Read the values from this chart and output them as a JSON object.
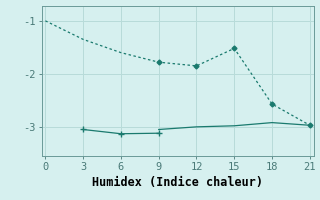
{
  "line1_x": [
    0,
    3,
    6,
    9,
    12,
    15,
    18,
    21
  ],
  "line1_y": [
    -1.0,
    -1.35,
    -1.6,
    -1.78,
    -1.85,
    -1.52,
    -2.57,
    -2.97
  ],
  "line2_x": [
    3,
    6,
    9
  ],
  "line2_y": [
    -3.05,
    -3.13,
    -3.12
  ],
  "line3_x": [
    9,
    12,
    15,
    18,
    21
  ],
  "line3_y": [
    -3.05,
    -3.0,
    -2.98,
    -2.92,
    -2.97
  ],
  "line_color": "#1a7a6e",
  "bg_color": "#d6f0ef",
  "grid_color": "#b8dbd9",
  "xlabel": "Humidex (Indice chaleur)",
  "xticks": [
    0,
    3,
    6,
    9,
    12,
    15,
    18,
    21
  ],
  "yticks": [
    -1,
    -2,
    -3
  ],
  "xlim": [
    -0.3,
    21.3
  ],
  "ylim": [
    -3.55,
    -0.72
  ],
  "xlabel_fontsize": 8.5,
  "tick_fontsize": 7.5
}
